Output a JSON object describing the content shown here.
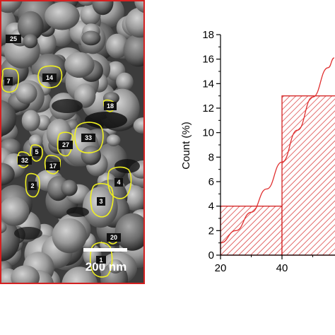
{
  "sem_panel": {
    "scale_bar_label": "200 nm",
    "particle_labels": [
      "25",
      "7",
      "14",
      "18",
      "33",
      "27",
      "5",
      "32",
      "17",
      "2",
      "4",
      "3",
      "20",
      "1"
    ],
    "border_color": "#d42020",
    "outline_color": "#f0f020"
  },
  "chart_data": {
    "type": "bar",
    "bins": [
      {
        "start": 20,
        "end": 40,
        "value": 4
      },
      {
        "start": 40,
        "end": 60,
        "value": 13
      }
    ],
    "fit_curve": {
      "type": "line",
      "x": [
        20,
        25,
        30,
        35,
        40,
        45,
        50,
        55,
        57
      ],
      "y": [
        1.0,
        2.0,
        3.5,
        5.4,
        7.6,
        10.2,
        12.9,
        15.3,
        16.1
      ]
    },
    "xlabel": "",
    "ylabel": "Count (%)",
    "xlim": [
      20,
      57
    ],
    "ylim": [
      0,
      18
    ],
    "x_ticks": [
      "20",
      "40"
    ],
    "y_ticks": [
      "0",
      "2",
      "4",
      "6",
      "8",
      "10",
      "12",
      "14",
      "16",
      "18"
    ],
    "grid": false,
    "bar_color": "#d42020",
    "line_color": "#e03030"
  }
}
